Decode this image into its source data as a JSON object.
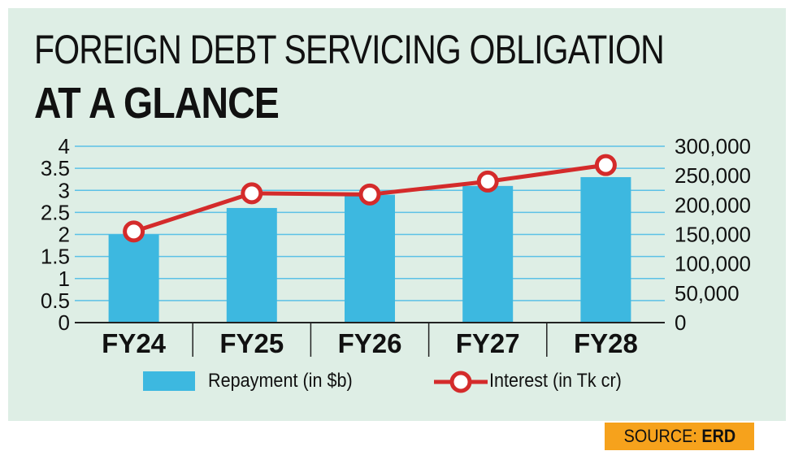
{
  "title": {
    "line1": "FOREIGN DEBT SERVICING OBLIGATION",
    "line2": "AT A GLANCE"
  },
  "source": {
    "label": "SOURCE:",
    "value": "ERD"
  },
  "colors": {
    "background": "#deeee5",
    "bar": "#3db8e0",
    "line": "#d42b2b",
    "grid": "#5bc1e6",
    "source_bg": "#f6a21c"
  },
  "legend": {
    "bars": "Repayment (in $b)",
    "line": "Interest (in Tk cr)"
  },
  "chart_data": {
    "type": "bar",
    "categories": [
      "FY24",
      "FY25",
      "FY26",
      "FY27",
      "FY28"
    ],
    "series": [
      {
        "name": "Repayment (in $b)",
        "type": "bar",
        "axis": "left",
        "values": [
          2.0,
          2.6,
          2.9,
          3.1,
          3.3
        ]
      },
      {
        "name": "Interest (in Tk cr)",
        "type": "line",
        "axis": "right",
        "values": [
          155000,
          220000,
          218000,
          240000,
          268000
        ]
      }
    ],
    "y_left": {
      "ylim": [
        0,
        4
      ],
      "ticks": [
        "4",
        "3.5",
        "3",
        "2.5",
        "2",
        "1.5",
        "1",
        "0.5",
        "0"
      ],
      "tick_values": [
        4,
        3.5,
        3,
        2.5,
        2,
        1.5,
        1,
        0.5,
        0
      ]
    },
    "y_right": {
      "ylim": [
        0,
        300000
      ],
      "ticks": [
        "300,000",
        "250,000",
        "200,000",
        "150,000",
        "100,000",
        "50,000",
        "0"
      ],
      "tick_values": [
        300000,
        250000,
        200000,
        150000,
        100000,
        50000,
        0
      ]
    },
    "grid": true,
    "legend_position": "bottom"
  }
}
